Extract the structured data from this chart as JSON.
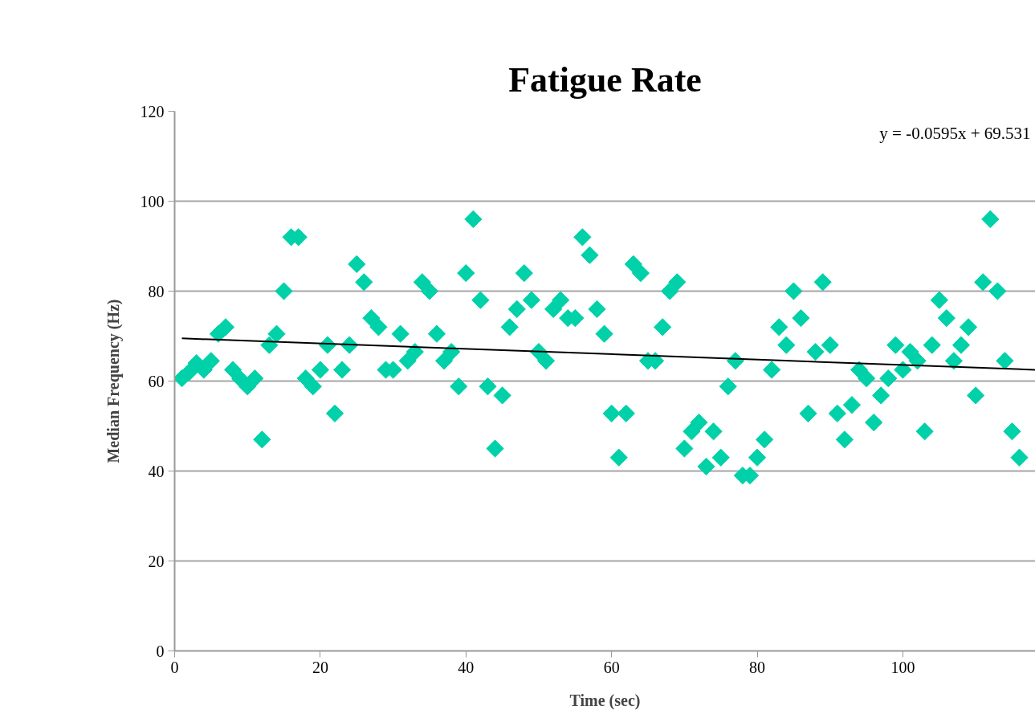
{
  "chart_data": {
    "type": "scatter",
    "title": "Fatigue Rate",
    "xlabel": "Time (sec)",
    "ylabel": "Median Frequency (Hz)",
    "xlim": [
      0,
      118.2
    ],
    "xticks": [
      0,
      20,
      40,
      60,
      80,
      100
    ],
    "ylim": [
      0,
      120
    ],
    "yticks": [
      0,
      20,
      40,
      60,
      80,
      100,
      120
    ],
    "grid": "y",
    "marker": "diamond",
    "annotations": [
      "y = -0.0595x + 69.531"
    ],
    "x": [
      1,
      2,
      3,
      4,
      5,
      6,
      7,
      8,
      9,
      10,
      11,
      12,
      13,
      14,
      15,
      16,
      17,
      18,
      19,
      20,
      21,
      22,
      23,
      24,
      25,
      26,
      27,
      28,
      29,
      30,
      31,
      32,
      33,
      34,
      35,
      36,
      37,
      38,
      39,
      40,
      41,
      42,
      43,
      44,
      45,
      46,
      47,
      48,
      49,
      50,
      51,
      52,
      53,
      54,
      55,
      56,
      57,
      58,
      59,
      60,
      61,
      62,
      63,
      64,
      65,
      66,
      67,
      68,
      69,
      70,
      71,
      72,
      73,
      74,
      75,
      76,
      77,
      78,
      79,
      80,
      81,
      82,
      83,
      84,
      85,
      86,
      87,
      88,
      89,
      90,
      91,
      92,
      93,
      94,
      95,
      96,
      97,
      98,
      99,
      100,
      101,
      102,
      103,
      104,
      105,
      106,
      107,
      108,
      109,
      110,
      111,
      112,
      113,
      114,
      115,
      116
    ],
    "series": [
      {
        "color": "#00d1a8",
        "values": [
          60.6,
          62,
          64,
          62.5,
          64.5,
          70.5,
          72,
          62.5,
          60.5,
          58.8,
          60.6,
          47,
          68,
          70.5,
          80,
          92,
          92,
          60.6,
          58.8,
          62.5,
          68,
          52.8,
          62.5,
          68,
          86,
          82,
          74,
          72,
          62.5,
          62.5,
          70.5,
          64.5,
          66.5,
          82,
          80,
          70.5,
          64.5,
          66.5,
          58.8,
          84,
          96,
          78,
          58.8,
          45,
          56.8,
          72,
          76,
          84,
          78,
          66.5,
          64.5,
          76,
          78,
          74,
          74,
          92,
          88,
          76,
          70.5,
          52.8,
          43,
          52.8,
          86,
          84,
          64.5,
          64.5,
          72,
          80,
          82,
          45,
          48.8,
          50.8,
          41,
          48.8,
          43,
          58.8,
          64.5,
          39,
          39,
          43,
          47,
          62.5,
          72,
          68,
          80,
          74,
          52.8,
          66.5,
          82,
          68,
          52.8,
          47,
          54.7,
          62.5,
          60.6,
          50.8,
          56.8,
          60.6,
          68,
          62.5,
          66.5,
          64.5,
          48.8,
          68,
          78,
          74,
          64.5,
          68,
          72,
          56.8,
          82,
          96,
          80,
          64.5,
          48.8,
          43
        ]
      },
      {
        "type": "line",
        "color": "#000000",
        "x": [
          1,
          118.2
        ],
        "values": [
          69.5,
          62.5
        ],
        "marker": "none"
      }
    ]
  }
}
